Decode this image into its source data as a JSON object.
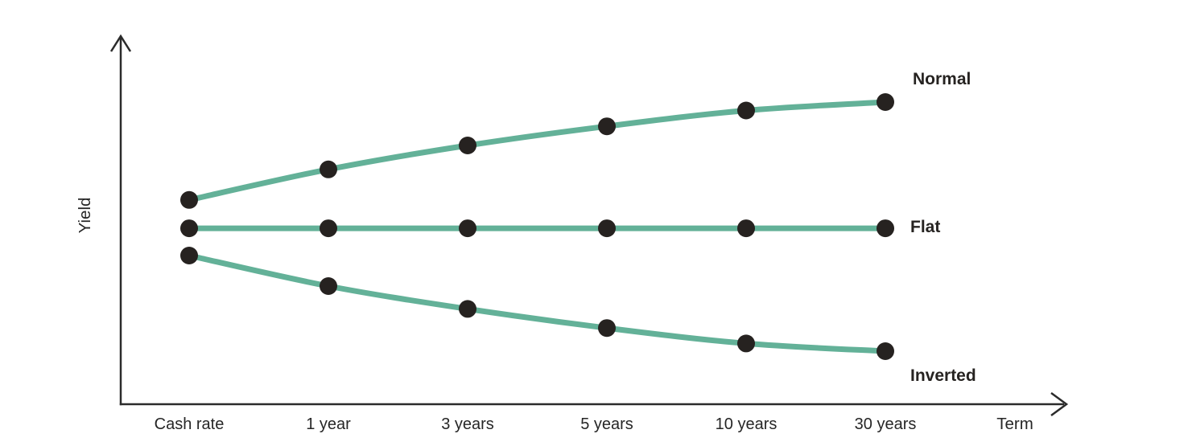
{
  "chart_data": {
    "type": "line",
    "title": "",
    "xlabel": "Term",
    "ylabel": "Yield",
    "categories": [
      "Cash rate",
      "1 year",
      "3 years",
      "5 years",
      "10 years",
      "30 years"
    ],
    "ylim": [
      0,
      100
    ],
    "grid": false,
    "legend_position": "end-of-line-labels-right",
    "series": [
      {
        "name": "Normal",
        "values": [
          55.5,
          63.8,
          70.3,
          75.5,
          79.8,
          82.1
        ]
      },
      {
        "name": "Flat",
        "values": [
          47.8,
          47.8,
          47.8,
          47.8,
          47.8,
          47.8
        ]
      },
      {
        "name": "Inverted",
        "values": [
          40.4,
          32.1,
          25.9,
          20.7,
          16.5,
          14.4
        ]
      }
    ],
    "colors": {
      "line": "#63b198",
      "point": "#262220",
      "axis": "#2b2b2b",
      "text": "#262626"
    }
  }
}
